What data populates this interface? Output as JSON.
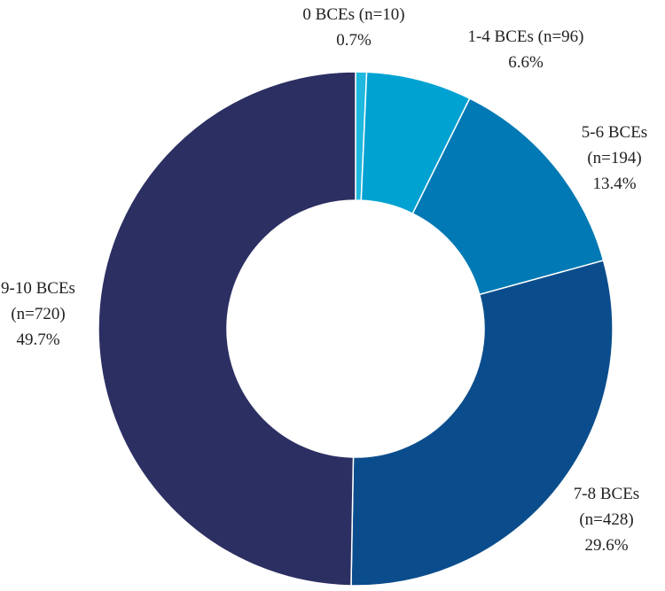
{
  "chart_data": {
    "type": "pie",
    "donut": true,
    "start_angle_deg": 0,
    "direction": "clockwise",
    "categories": [
      "0 BCEs",
      "1-4 BCEs",
      "5-6 BCEs",
      "7-8 BCEs",
      "9-10 BCEs"
    ],
    "values": [
      10,
      96,
      194,
      428,
      720
    ],
    "slices": [
      {
        "label": "0 BCEs",
        "count_text": "(n=10)",
        "n": 10,
        "percent": 0.7,
        "percent_text": "0.7%",
        "color": "#1fb8df"
      },
      {
        "label": "1-4 BCEs",
        "count_text": "(n=96)",
        "n": 96,
        "percent": 6.6,
        "percent_text": "6.6%",
        "color": "#00a2d2"
      },
      {
        "label": "5-6 BCEs",
        "count_text": "(n=194)",
        "n": 194,
        "percent": 13.4,
        "percent_text": "13.4%",
        "color": "#0079b4"
      },
      {
        "label": "7-8 BCEs",
        "count_text": "(n=428)",
        "n": 428,
        "percent": 29.6,
        "percent_text": "29.6%",
        "color": "#0b4d8c"
      },
      {
        "label": "9-10 BCEs",
        "count_text": "(n=720)",
        "n": 720,
        "percent": 49.7,
        "percent_text": "49.7%",
        "color": "#2c2f62"
      }
    ],
    "legend": "none"
  }
}
